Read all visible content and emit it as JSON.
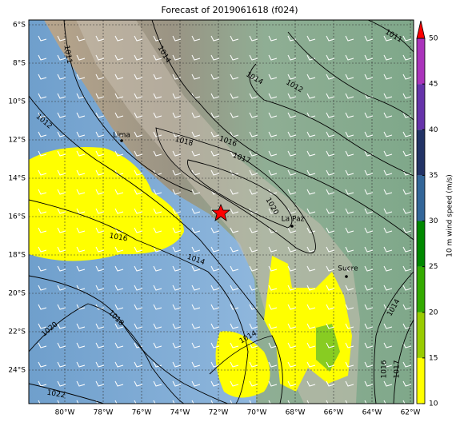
{
  "title": "Forecast of 2019061618 (f024)",
  "map": {
    "lat_labels": [
      "6°S",
      "8°S",
      "10°S",
      "12°S",
      "14°S",
      "16°S",
      "18°S",
      "20°S",
      "22°S",
      "24°S"
    ],
    "lon_labels": [
      "80°W",
      "78°W",
      "76°W",
      "74°W",
      "72°W",
      "70°W",
      "68°W",
      "66°W",
      "64°W",
      "62°W"
    ],
    "cities": [
      "Lima",
      "La Paz",
      "Sucre"
    ],
    "isobar_labels": [
      1011,
      1014,
      1014,
      1012,
      1011,
      1012,
      1018,
      1016,
      1017,
      1020,
      1016,
      1014,
      1018,
      1020,
      1014,
      1014,
      1016,
      1017,
      1022
    ]
  },
  "colorbar": {
    "label": "10 m wind speed (m/s)",
    "lim": [
      10,
      50
    ],
    "ticks": [
      10,
      15,
      20,
      25,
      30,
      35,
      40,
      45,
      50
    ],
    "colors": [
      "#ffff00",
      "#99cc00",
      "#33aa00",
      "#008800",
      "#336699",
      "#223366",
      "#6633aa",
      "#aa33bb"
    ],
    "extend_color": "#ff0000"
  }
}
